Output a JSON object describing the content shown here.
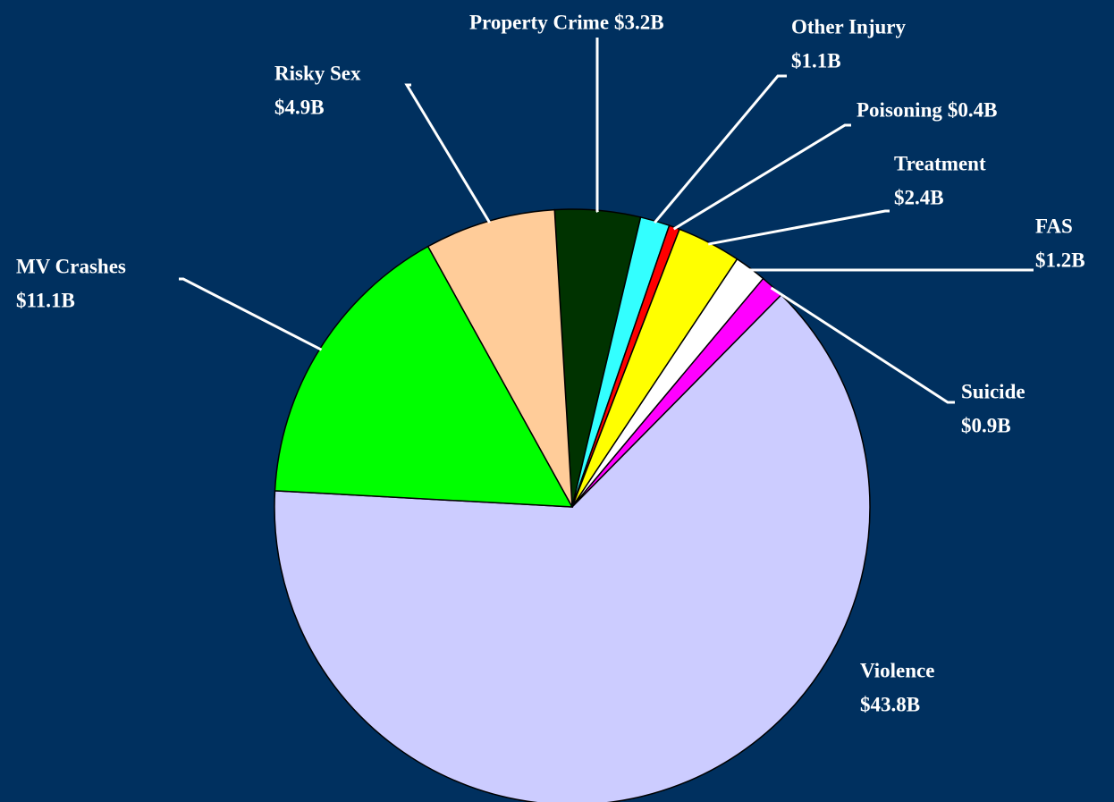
{
  "chart_data": {
    "type": "pie",
    "categories": [
      "Property Crime",
      "Other Injury",
      "Poisoning",
      "Treatment",
      "FAS",
      "Suicide",
      "Violence",
      "MV Crashes",
      "Risky Sex"
    ],
    "values": [
      3.2,
      1.1,
      0.4,
      2.4,
      1.2,
      0.9,
      43.8,
      11.1,
      4.9
    ],
    "value_labels": [
      "$3.2B",
      "$1.1B",
      "$0.4B",
      "$2.4B",
      "$1.2B",
      "$0.9B",
      "$43.8B",
      "$11.1B",
      "$4.9B"
    ],
    "colors": [
      "#003300",
      "#33ffff",
      "#ff0000",
      "#ffff00",
      "#ffffff",
      "#ff00ff",
      "#ccccff",
      "#00ff00",
      "#ffcc99"
    ]
  }
}
